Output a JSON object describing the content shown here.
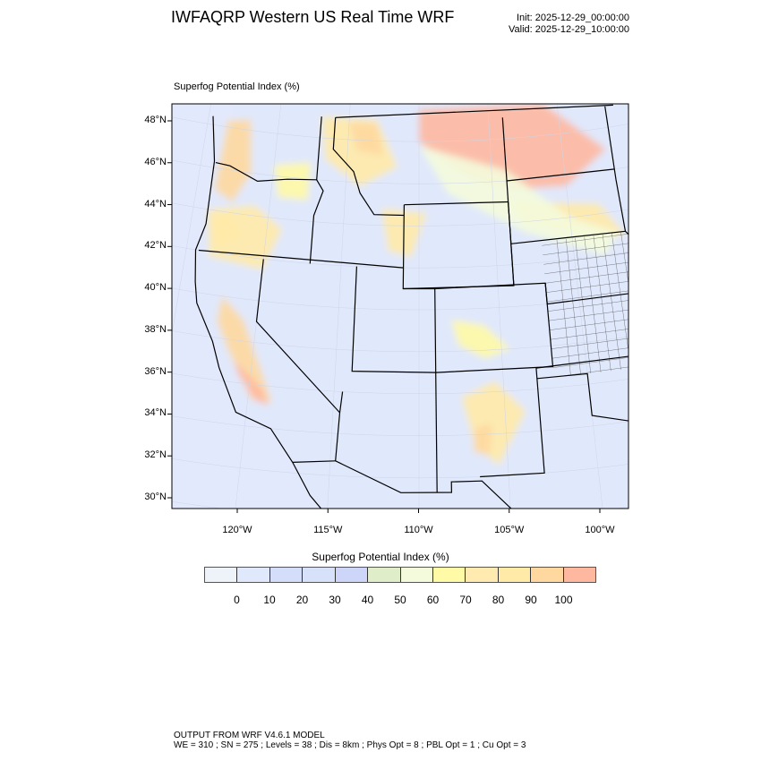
{
  "header": {
    "title": "IWFAQRP Western US Real Time WRF",
    "init": "Init: 2025-12-29_00:00:00",
    "valid": "Valid: 2025-12-29_10:00:00",
    "subtitle": "Superfog Potential Index   (%)"
  },
  "map": {
    "lat_labels": [
      "30°N",
      "32°N",
      "34°N",
      "36°N",
      "38°N",
      "40°N",
      "42°N",
      "44°N",
      "46°N",
      "48°N"
    ],
    "lat_values": [
      30,
      32,
      34,
      36,
      38,
      40,
      42,
      44,
      46,
      48
    ],
    "lon_labels": [
      "120°W",
      "115°W",
      "110°W",
      "105°W",
      "100°W"
    ],
    "lon_values": [
      -120,
      -115,
      -110,
      -105,
      -100
    ]
  },
  "colorbar": {
    "title": "Superfog Potential Index  (%)",
    "labels": [
      "0",
      "10",
      "20",
      "30",
      "40",
      "50",
      "60",
      "70",
      "80",
      "90",
      "100"
    ],
    "colors": [
      "#eef2f9",
      "#e0e8fb",
      "#d4defb",
      "#d7e1fa",
      "#cdd5f8",
      "#dfedc8",
      "#f4fbdc",
      "#fffaa5",
      "#ffeab0",
      "#ffeaa8",
      "#fed89e",
      "#feb8a0"
    ]
  },
  "footer": {
    "line1": "OUTPUT FROM WRF V4.6.1 MODEL",
    "line2": "WE = 310 ; SN = 275 ; Levels = 38 ; Dis = 8km ; Phys Opt = 8 ; PBL Opt = 1 ; Cu Opt = 3"
  }
}
